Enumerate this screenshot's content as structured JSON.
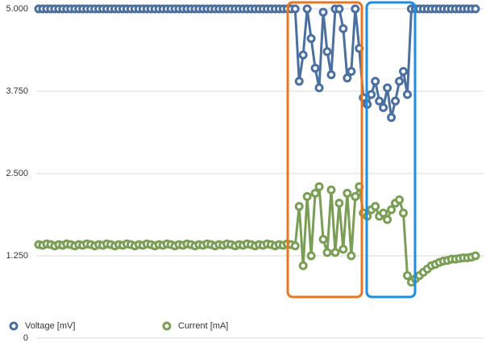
{
  "chart_data": {
    "type": "line",
    "categories": [
      null,
      null,
      null,
      null,
      null,
      null,
      null,
      null,
      null,
      null,
      null,
      null,
      null,
      null,
      null,
      null,
      null,
      null,
      null,
      null,
      null,
      null,
      null,
      null,
      null,
      null,
      null,
      null,
      null,
      null,
      null,
      null,
      null,
      null,
      null,
      null,
      null,
      null,
      null,
      null,
      null,
      null,
      null,
      null,
      null,
      null,
      null,
      null,
      null,
      null,
      null,
      null,
      null,
      null,
      null,
      null,
      null,
      null,
      null,
      null,
      null,
      null,
      null,
      null,
      null,
      null,
      null,
      null,
      null,
      null,
      null,
      null,
      null,
      null,
      null,
      null,
      null,
      null,
      null,
      null,
      null,
      null,
      null,
      null,
      null,
      null,
      null,
      null,
      null,
      null,
      null,
      null,
      null,
      null,
      null,
      null,
      null,
      null,
      null,
      null,
      null,
      null,
      null,
      null,
      null,
      null,
      null,
      null,
      null,
      null
    ],
    "series": [
      {
        "name": "Voltage [mV]",
        "color": "#4b6f9f",
        "values": [
          5,
          5,
          5,
          5,
          5,
          5,
          5,
          5,
          5,
          5,
          5,
          5,
          5,
          5,
          5,
          5,
          5,
          5,
          5,
          5,
          5,
          5,
          5,
          5,
          5,
          5,
          5,
          5,
          5,
          5,
          5,
          5,
          5,
          5,
          5,
          5,
          5,
          5,
          5,
          5,
          5,
          5,
          5,
          5,
          5,
          5,
          5,
          5,
          5,
          5,
          5,
          5,
          5,
          5,
          5,
          5,
          5,
          5,
          5,
          5,
          5,
          5,
          5,
          5,
          5,
          3.9,
          4.3,
          5,
          4.55,
          4.1,
          3.8,
          4.95,
          4.35,
          4.0,
          5,
          5,
          4.7,
          3.95,
          4.05,
          5,
          4.4,
          3.65,
          3.55,
          3.7,
          3.9,
          3.6,
          3.5,
          3.8,
          3.35,
          3.6,
          3.9,
          4.05,
          3.7,
          5,
          5,
          5,
          5,
          5,
          5,
          5,
          5,
          5,
          5,
          5,
          5,
          5,
          5,
          5,
          5,
          5
        ]
      },
      {
        "name": "Current [mA]",
        "color": "#7a9e55",
        "values": [
          1.42,
          1.41,
          1.43,
          1.42,
          1.4,
          1.42,
          1.41,
          1.43,
          1.42,
          1.4,
          1.42,
          1.41,
          1.43,
          1.42,
          1.4,
          1.42,
          1.41,
          1.43,
          1.42,
          1.4,
          1.42,
          1.41,
          1.43,
          1.42,
          1.4,
          1.42,
          1.41,
          1.43,
          1.42,
          1.4,
          1.42,
          1.41,
          1.43,
          1.42,
          1.4,
          1.42,
          1.41,
          1.43,
          1.42,
          1.4,
          1.42,
          1.41,
          1.43,
          1.42,
          1.4,
          1.42,
          1.41,
          1.43,
          1.42,
          1.4,
          1.42,
          1.41,
          1.43,
          1.42,
          1.4,
          1.42,
          1.41,
          1.43,
          1.42,
          1.4,
          1.42,
          1.41,
          1.43,
          1.42,
          1.4,
          2.0,
          1.1,
          2.15,
          1.25,
          2.2,
          2.3,
          1.5,
          1.3,
          2.25,
          1.3,
          2.05,
          1.35,
          2.2,
          1.25,
          2.15,
          2.3,
          1.9,
          1.85,
          1.95,
          2.0,
          1.85,
          1.9,
          1.8,
          1.95,
          2.05,
          2.1,
          1.9,
          0.95,
          0.85,
          0.9,
          0.95,
          1.0,
          1.05,
          1.1,
          1.12,
          1.15,
          1.17,
          1.18,
          1.2,
          1.2,
          1.21,
          1.22,
          1.22,
          1.23,
          1.25
        ]
      }
    ],
    "ylim": [
      0,
      5
    ],
    "yticks": [
      0,
      {
        "value": 1.25,
        "label": "1.250"
      },
      {
        "value": 2.5,
        "label": "2.500"
      },
      {
        "value": 3.75,
        "label": "3.750"
      },
      {
        "value": 5,
        "label": "5.000"
      }
    ],
    "grid": true,
    "legend": "bottom"
  }
}
